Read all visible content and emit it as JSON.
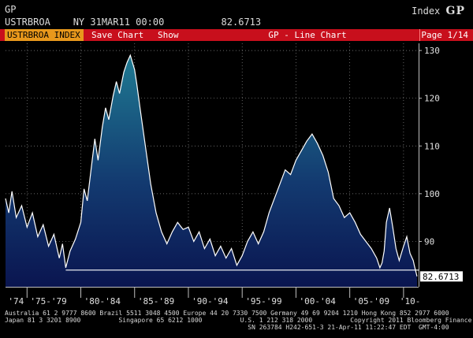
{
  "header": {
    "line1": "GP",
    "line2_ticker": "USTRBROA",
    "line2_stamp": "NY 31MAR11 00:00",
    "line2_value": "82.6713",
    "index_label": "Index",
    "index_brand": "GP"
  },
  "toolbar": {
    "ticker_tab": "USTRBROA INDEX",
    "save_label": "Save Chart",
    "show_label": "Show",
    "title": "GP - Line Chart",
    "page": "Page 1/14"
  },
  "colors": {
    "bar_red": "#c80f1c",
    "ticker_orange": "#e8981c",
    "line": "#ffffff",
    "fill_top": "#1a6a86",
    "fill_bottom": "#0a1a55"
  },
  "chart_data": {
    "type": "area",
    "x_ticks": [
      "'74",
      "'75-'79",
      "'80-'84",
      "'85-'89",
      "'90-'94",
      "'95-'99",
      "'00-'04",
      "'05-'09",
      "'10-"
    ],
    "y_ticks": [
      90,
      100,
      110,
      120,
      130
    ],
    "ylim": [
      80.5,
      131.5
    ],
    "last_value_label": "82.6713",
    "reference_level": 84.0,
    "grid": true,
    "series": [
      {
        "x": [
          1973.0,
          1973.3,
          1973.6,
          1974.0,
          1974.5,
          1975.0,
          1975.5,
          1976.0,
          1976.5,
          1977.0,
          1977.5,
          1978.0,
          1978.3,
          1978.6,
          1979.0,
          1979.5,
          1980.0,
          1980.3,
          1980.6,
          1981.0,
          1981.3,
          1981.6,
          1982.0,
          1982.3,
          1982.6,
          1983.0,
          1983.3,
          1983.6,
          1984.0,
          1984.3,
          1984.6,
          1985.0,
          1985.2,
          1985.5,
          1986.0,
          1986.5,
          1987.0,
          1987.5,
          1988.0,
          1988.5,
          1989.0,
          1989.5,
          1990.0,
          1990.5,
          1991.0,
          1991.5,
          1992.0,
          1992.5,
          1993.0,
          1993.5,
          1994.0,
          1994.5,
          1995.0,
          1995.5,
          1996.0,
          1996.5,
          1997.0,
          1997.5,
          1998.0,
          1998.5,
          1999.0,
          1999.5,
          2000.0,
          2000.5,
          2001.0,
          2001.5,
          2002.0,
          2002.5,
          2003.0,
          2003.5,
          2004.0,
          2004.5,
          2005.0,
          2005.5,
          2006.0,
          2006.5,
          2007.0,
          2007.5,
          2007.8,
          2008.0,
          2008.2,
          2008.4,
          2008.7,
          2009.0,
          2009.3,
          2009.6,
          2010.0,
          2010.3,
          2010.6,
          2010.9,
          2011.0,
          2011.25
        ],
        "y": [
          99.0,
          96.0,
          100.5,
          95.0,
          97.5,
          93.0,
          96.0,
          91.0,
          93.5,
          89.0,
          91.5,
          86.5,
          89.5,
          84.5,
          88.0,
          90.5,
          94.0,
          101.0,
          98.5,
          106.0,
          111.5,
          107.0,
          114.0,
          118.0,
          115.5,
          120.5,
          123.5,
          121.0,
          125.5,
          127.5,
          129.0,
          126.0,
          123.0,
          118.0,
          110.0,
          102.0,
          96.0,
          92.0,
          89.5,
          92.0,
          94.0,
          92.5,
          93.0,
          90.0,
          92.0,
          88.5,
          90.5,
          87.0,
          89.0,
          86.5,
          88.5,
          85.0,
          87.0,
          90.0,
          92.0,
          89.5,
          92.0,
          96.0,
          99.0,
          102.0,
          105.0,
          104.0,
          107.0,
          109.0,
          111.0,
          112.5,
          110.5,
          108.0,
          104.5,
          99.0,
          97.5,
          95.0,
          96.0,
          94.0,
          91.5,
          90.0,
          88.5,
          86.5,
          84.5,
          85.5,
          88.0,
          94.0,
          97.0,
          93.0,
          88.5,
          86.0,
          89.0,
          91.0,
          87.5,
          86.0,
          85.0,
          82.6713
        ]
      }
    ]
  },
  "footer": {
    "line1": "Australia 61 2 9777 8600 Brazil 5511 3048 4500 Europe 44 20 7330 7500 Germany 49 69 9204 1210 Hong Kong 852 2977 6000",
    "line2": "Japan 81 3 3201 8900          Singapore 65 6212 1000          U.S. 1 212 318 2000          Copyright 2011 Bloomberg Finance L.P.",
    "line3": "                                                                SN 263784 H242-651-3 21-Apr-11 11:22:47 EDT  GMT-4:00"
  }
}
